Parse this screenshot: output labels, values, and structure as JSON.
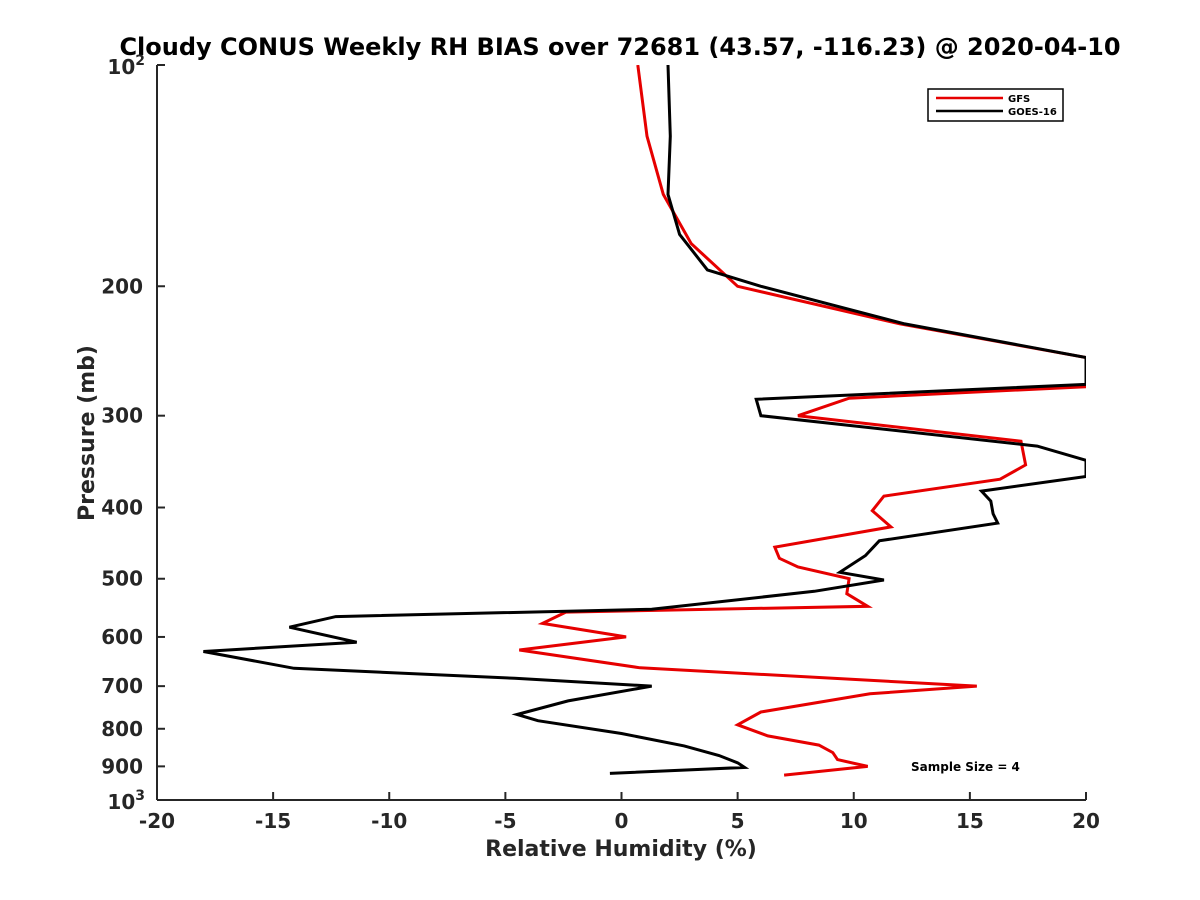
{
  "chart_data": {
    "type": "line",
    "title": "Cloudy CONUS Weekly RH BIAS over 72681 (43.57, -116.23) @ 2020-04-10",
    "xlabel": "Relative Humidity (%)",
    "ylabel": "Pressure (mb)",
    "xlim": [
      -20,
      20
    ],
    "ylim": [
      100,
      1000
    ],
    "yscale": "log",
    "y_reversed": true,
    "grid": false,
    "legend_position": "top-right",
    "x_ticks": [
      "-20",
      "-15",
      "-10",
      "-5",
      "0",
      "5",
      "10",
      "15",
      "20"
    ],
    "y_ticks": [
      {
        "value": 100,
        "label": "10",
        "sup": "2"
      },
      {
        "value": 200,
        "label": "200"
      },
      {
        "value": 300,
        "label": "300"
      },
      {
        "value": 400,
        "label": "400"
      },
      {
        "value": 500,
        "label": "500"
      },
      {
        "value": 600,
        "label": "600"
      },
      {
        "value": 700,
        "label": "700"
      },
      {
        "value": 800,
        "label": "800"
      },
      {
        "value": 900,
        "label": "900"
      },
      {
        "value": 1000,
        "label": "10",
        "sup": "3"
      }
    ],
    "annotation": "Sample Size = 4",
    "series": [
      {
        "name": "GFS",
        "color": "#e60000",
        "points": [
          [
            0.7,
            100
          ],
          [
            1.1,
            125
          ],
          [
            1.8,
            150
          ],
          [
            3.0,
            175
          ],
          [
            5.0,
            200
          ],
          [
            12.0,
            225
          ],
          [
            20.0,
            250
          ],
          [
            20.0,
            274
          ],
          [
            9.8,
            284
          ],
          [
            7.6,
            300
          ],
          [
            17.2,
            325
          ],
          [
            17.4,
            350
          ],
          [
            16.3,
            366
          ],
          [
            11.3,
            386
          ],
          [
            10.8,
            404
          ],
          [
            11.6,
            425
          ],
          [
            6.6,
            453
          ],
          [
            6.8,
            469
          ],
          [
            7.6,
            482
          ],
          [
            9.8,
            500
          ],
          [
            9.7,
            524
          ],
          [
            10.6,
            545
          ],
          [
            -2.4,
            555
          ],
          [
            -3.4,
            575
          ],
          [
            0.2,
            600
          ],
          [
            -4.4,
            625
          ],
          [
            0.8,
            661
          ],
          [
            15.3,
            700
          ],
          [
            10.7,
            717
          ],
          [
            6.0,
            759
          ],
          [
            5.0,
            790
          ],
          [
            6.3,
            818
          ],
          [
            8.5,
            842
          ],
          [
            9.1,
            862
          ],
          [
            9.3,
            881
          ],
          [
            10.6,
            900
          ],
          [
            7.0,
            925
          ]
        ]
      },
      {
        "name": "GOES-16",
        "color": "#000000",
        "points": [
          [
            2.0,
            100
          ],
          [
            2.1,
            125
          ],
          [
            2.0,
            150
          ],
          [
            2.5,
            170
          ],
          [
            3.7,
            190
          ],
          [
            6.0,
            200
          ],
          [
            12.2,
            225
          ],
          [
            20.0,
            250
          ],
          [
            20.0,
            272
          ],
          [
            5.8,
            285
          ],
          [
            6.0,
            300
          ],
          [
            17.9,
            330
          ],
          [
            20.0,
            345
          ],
          [
            20.0,
            363
          ],
          [
            15.5,
            380
          ],
          [
            15.9,
            392
          ],
          [
            16.0,
            408
          ],
          [
            16.2,
            420
          ],
          [
            11.1,
            444
          ],
          [
            10.5,
            465
          ],
          [
            9.4,
            490
          ],
          [
            11.3,
            502
          ],
          [
            8.3,
            520
          ],
          [
            1.3,
            550
          ],
          [
            -12.3,
            563
          ],
          [
            -14.3,
            582
          ],
          [
            -11.4,
            610
          ],
          [
            -18.0,
            628
          ],
          [
            -14.1,
            662
          ],
          [
            -4.6,
            683
          ],
          [
            1.3,
            700
          ],
          [
            -2.3,
            733
          ],
          [
            -4.5,
            765
          ],
          [
            -3.6,
            780
          ],
          [
            0.0,
            812
          ],
          [
            2.7,
            844
          ],
          [
            4.2,
            870
          ],
          [
            5.0,
            890
          ],
          [
            5.3,
            903
          ],
          [
            -0.5,
            920
          ]
        ]
      }
    ]
  }
}
